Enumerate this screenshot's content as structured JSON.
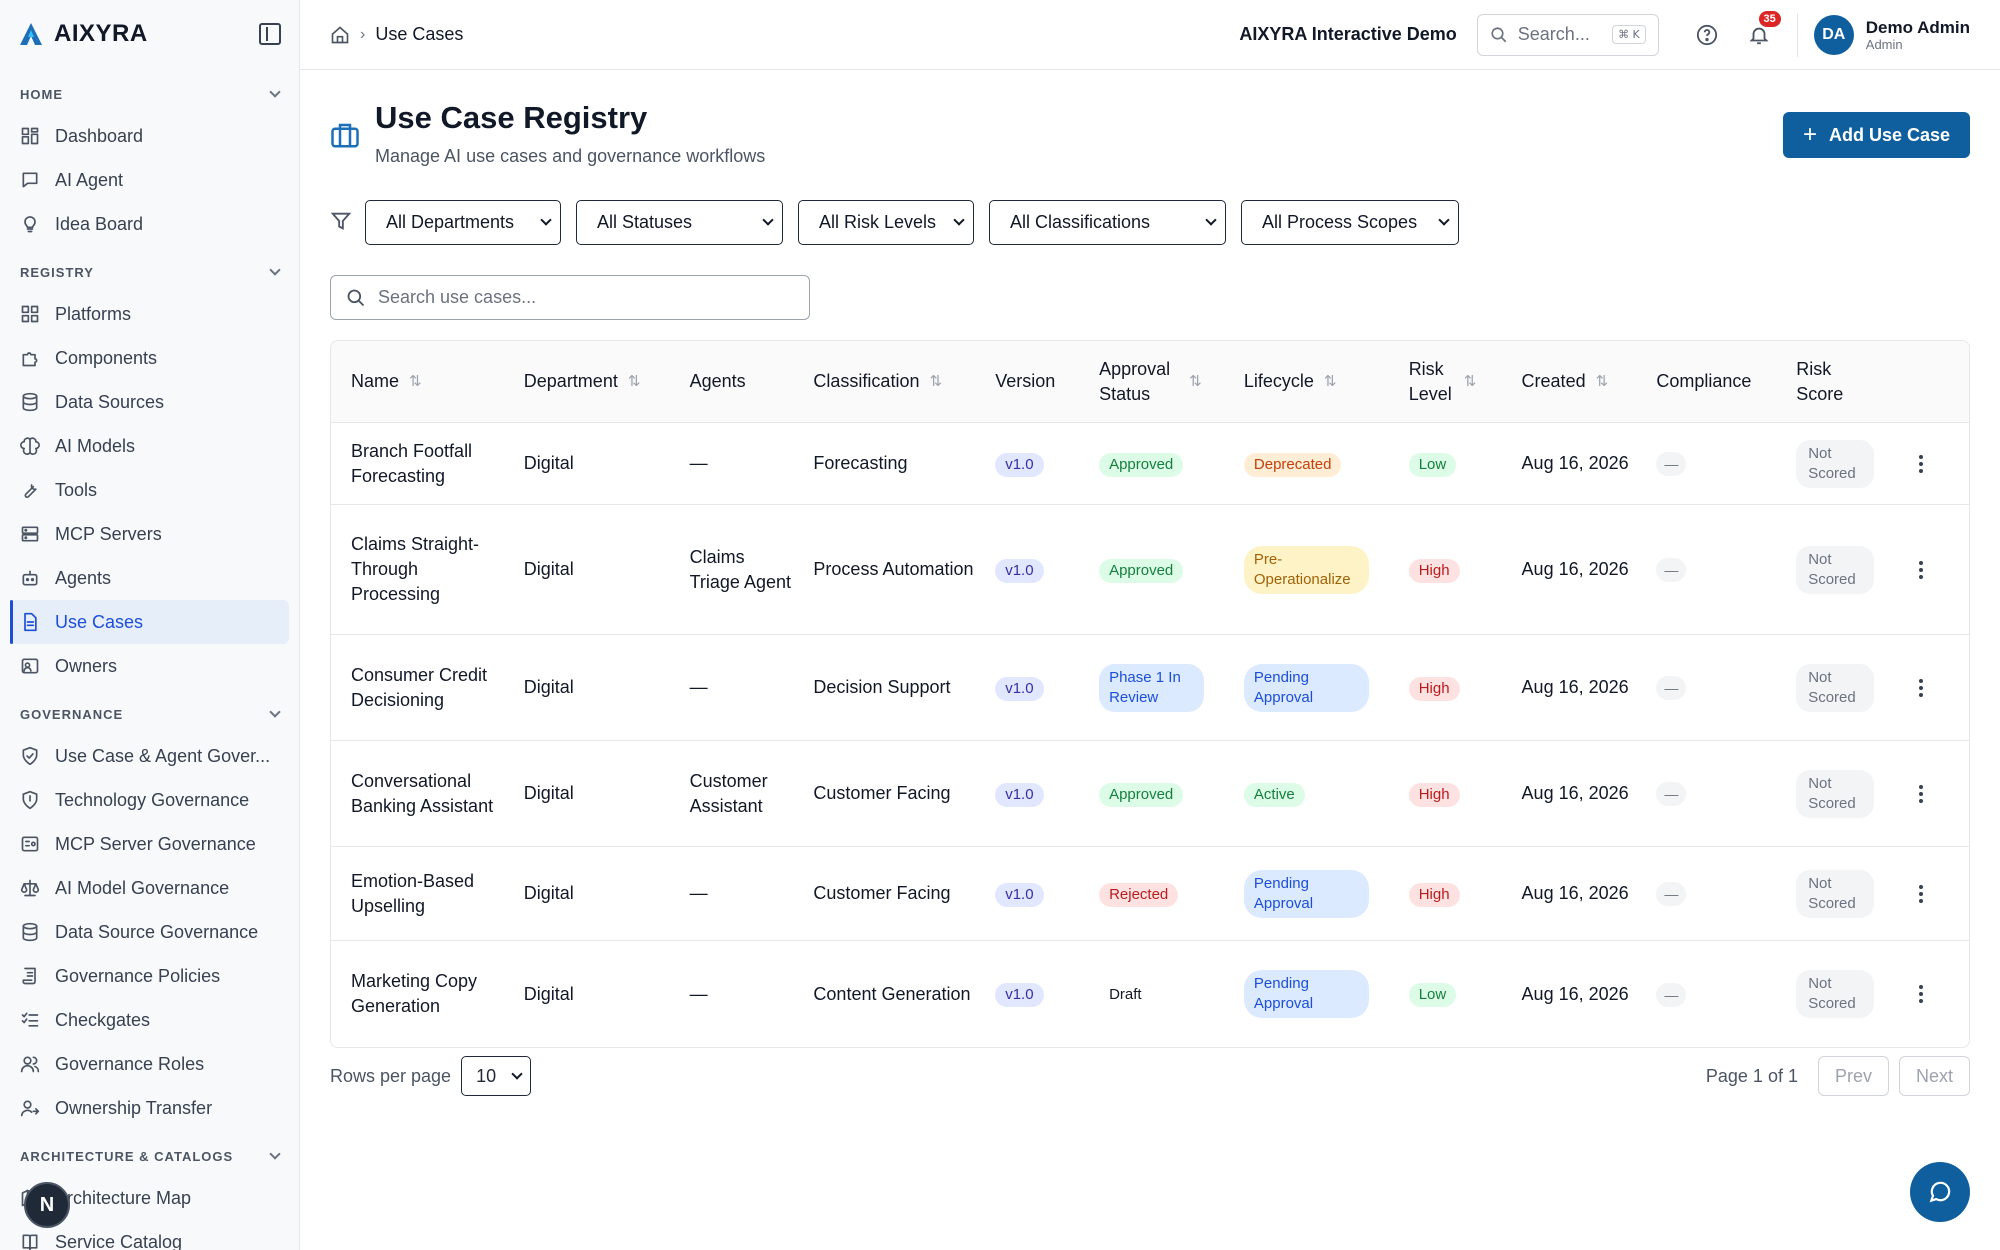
{
  "brand": {
    "name": "AIXYRA"
  },
  "sidebar": {
    "sections": [
      {
        "title": "HOME",
        "items": [
          {
            "label": "Dashboard",
            "icon": "dashboard-icon"
          },
          {
            "label": "AI Agent",
            "icon": "chat-icon"
          },
          {
            "label": "Idea Board",
            "icon": "lightbulb-icon"
          }
        ]
      },
      {
        "title": "REGISTRY",
        "items": [
          {
            "label": "Platforms",
            "icon": "grid-icon"
          },
          {
            "label": "Components",
            "icon": "puzzle-icon"
          },
          {
            "label": "Data Sources",
            "icon": "database-icon"
          },
          {
            "label": "AI Models",
            "icon": "brain-icon"
          },
          {
            "label": "Tools",
            "icon": "wrench-icon"
          },
          {
            "label": "MCP Servers",
            "icon": "server-icon"
          },
          {
            "label": "Agents",
            "icon": "bot-icon"
          },
          {
            "label": "Use Cases",
            "icon": "file-icon",
            "active": true
          },
          {
            "label": "Owners",
            "icon": "id-card-icon"
          }
        ]
      },
      {
        "title": "GOVERNANCE",
        "items": [
          {
            "label": "Use Case & Agent Gover...",
            "icon": "shield-check-icon"
          },
          {
            "label": "Technology Governance",
            "icon": "shield-icon"
          },
          {
            "label": "MCP Server Governance",
            "icon": "server-shield-icon"
          },
          {
            "label": "AI Model Governance",
            "icon": "scale-icon"
          },
          {
            "label": "Data Source Governance",
            "icon": "database-icon"
          },
          {
            "label": "Governance Policies",
            "icon": "scroll-icon"
          },
          {
            "label": "Checkgates",
            "icon": "checklist-icon"
          },
          {
            "label": "Governance Roles",
            "icon": "users-icon"
          },
          {
            "label": "Ownership Transfer",
            "icon": "user-transfer-icon"
          }
        ]
      },
      {
        "title": "ARCHITECTURE & CATALOGS",
        "items": [
          {
            "label": "Architecture Map",
            "icon": "map-icon"
          },
          {
            "label": "Service Catalog",
            "icon": "book-icon"
          }
        ]
      }
    ]
  },
  "topbar": {
    "breadcrumb": "Use Cases",
    "demo_label": "AIXYRA Interactive Demo",
    "search_placeholder": "Search...",
    "search_shortcut": "⌘ K",
    "notifications_count": "35",
    "user": {
      "initials": "DA",
      "name": "Demo Admin",
      "role": "Admin"
    }
  },
  "page": {
    "title": "Use Case Registry",
    "subtitle": "Manage AI use cases and governance workflows",
    "add_button": "Add Use Case",
    "filters": [
      "All Departments",
      "All Statuses",
      "All Risk Levels",
      "All Classifications",
      "All Process Scopes"
    ],
    "search_placeholder": "Search use cases..."
  },
  "table": {
    "columns": [
      "Name",
      "Department",
      "Agents",
      "Classification",
      "Version",
      "Approval Status",
      "Lifecycle",
      "Risk Level",
      "Created",
      "Compliance",
      "Risk Score"
    ],
    "rows": [
      {
        "name": "Branch Footfall Forecasting",
        "department": "Digital",
        "agents": "—",
        "classification": "Forecasting",
        "version": "v1.0",
        "approval": "Approved",
        "lifecycle": "Deprecated",
        "risk": "Low",
        "created": "Aug 16, 2026",
        "compliance": "—",
        "risk_score": "Not Scored"
      },
      {
        "name": "Claims Straight-Through Processing",
        "department": "Digital",
        "agents": "Claims Triage Agent",
        "classification": "Process Automation",
        "version": "v1.0",
        "approval": "Approved",
        "lifecycle": "Pre-Operationalize",
        "risk": "High",
        "created": "Aug 16, 2026",
        "compliance": "—",
        "risk_score": "Not Scored"
      },
      {
        "name": "Consumer Credit Decisioning",
        "department": "Digital",
        "agents": "—",
        "classification": "Decision Support",
        "version": "v1.0",
        "approval": "Phase 1 In Review",
        "lifecycle": "Pending Approval",
        "risk": "High",
        "created": "Aug 16, 2026",
        "compliance": "—",
        "risk_score": "Not Scored"
      },
      {
        "name": "Conversational Banking Assistant",
        "department": "Digital",
        "agents": "Customer Assistant",
        "classification": "Customer Facing",
        "version": "v1.0",
        "approval": "Approved",
        "lifecycle": "Active",
        "risk": "High",
        "created": "Aug 16, 2026",
        "compliance": "—",
        "risk_score": "Not Scored"
      },
      {
        "name": "Emotion-Based Upselling",
        "department": "Digital",
        "agents": "—",
        "classification": "Customer Facing",
        "version": "v1.0",
        "approval": "Rejected",
        "lifecycle": "Pending Approval",
        "risk": "High",
        "created": "Aug 16, 2026",
        "compliance": "—",
        "risk_score": "Not Scored"
      },
      {
        "name": "Marketing Copy Generation",
        "department": "Digital",
        "agents": "—",
        "classification": "Content Generation",
        "version": "v1.0",
        "approval": "Draft",
        "lifecycle": "Pending Approval",
        "risk": "Low",
        "created": "Aug 16, 2026",
        "compliance": "—",
        "risk_score": "Not Scored"
      }
    ]
  },
  "pagination": {
    "rows_label": "Rows per page",
    "rows_value": "10",
    "page_info": "Page 1 of 1",
    "prev": "Prev",
    "next": "Next"
  },
  "floating": {
    "n_badge": "N"
  },
  "colors": {
    "accent": "#0f5f9f",
    "active_nav_bg": "#e6eef9",
    "danger": "#dc2626"
  }
}
